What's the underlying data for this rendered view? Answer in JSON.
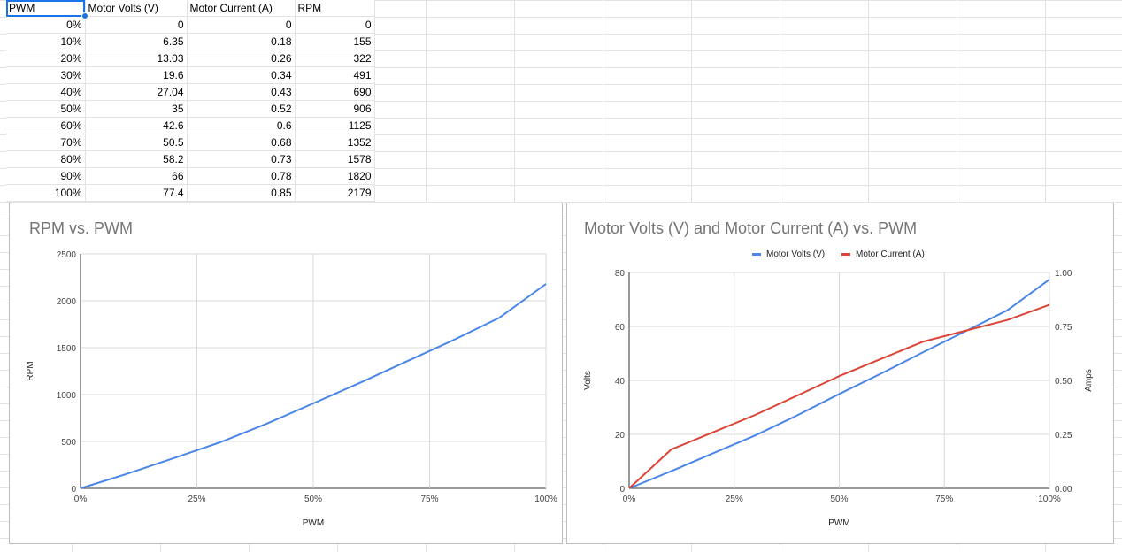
{
  "sheet": {
    "headers": [
      "PWM",
      "Motor Volts (V)",
      "Motor Current (A)",
      "RPM"
    ],
    "rows": [
      [
        "0%",
        "0",
        "0",
        "0"
      ],
      [
        "10%",
        "6.35",
        "0.18",
        "155"
      ],
      [
        "20%",
        "13.03",
        "0.26",
        "322"
      ],
      [
        "30%",
        "19.6",
        "0.34",
        "491"
      ],
      [
        "40%",
        "27.04",
        "0.43",
        "690"
      ],
      [
        "50%",
        "35",
        "0.52",
        "906"
      ],
      [
        "60%",
        "42.6",
        "0.6",
        "1125"
      ],
      [
        "70%",
        "50.5",
        "0.68",
        "1352"
      ],
      [
        "80%",
        "58.2",
        "0.73",
        "1578"
      ],
      [
        "90%",
        "66",
        "0.78",
        "1820"
      ],
      [
        "100%",
        "77.4",
        "0.85",
        "2179"
      ]
    ]
  },
  "chart_data": [
    {
      "type": "line",
      "title": "RPM vs. PWM",
      "xlabel": "PWM",
      "ylabel": "RPM",
      "x": [
        0,
        10,
        20,
        30,
        40,
        50,
        60,
        70,
        80,
        90,
        100
      ],
      "xlim": [
        0,
        100
      ],
      "xticks": [
        "0%",
        "25%",
        "50%",
        "75%",
        "100%"
      ],
      "ylim": [
        0,
        2500
      ],
      "yticks": [
        "0",
        "500",
        "1000",
        "1500",
        "2000",
        "2500"
      ],
      "grid": true,
      "series": [
        {
          "values": [
            0,
            155,
            322,
            491,
            690,
            906,
            1125,
            1352,
            1578,
            1820,
            2179
          ],
          "color": "#4a86e8"
        }
      ]
    },
    {
      "type": "line",
      "title": "Motor Volts (V) and Motor Current (A) vs. PWM",
      "xlabel": "PWM",
      "ylabel": "Volts",
      "y2label": "Amps",
      "x": [
        0,
        10,
        20,
        30,
        40,
        50,
        60,
        70,
        80,
        90,
        100
      ],
      "xlim": [
        0,
        100
      ],
      "xticks": [
        "0%",
        "25%",
        "50%",
        "75%",
        "100%"
      ],
      "ylim": [
        0,
        80
      ],
      "yticks": [
        "0",
        "20",
        "40",
        "60",
        "80"
      ],
      "y2lim": [
        0,
        1.0
      ],
      "y2ticks": [
        "0.00",
        "0.25",
        "0.50",
        "0.75",
        "1.00"
      ],
      "legend": "top",
      "grid": true,
      "series": [
        {
          "name": "Motor Volts (V)",
          "axis": "left",
          "values": [
            0,
            6.35,
            13.03,
            19.6,
            27.04,
            35,
            42.6,
            50.5,
            58.2,
            66,
            77.4
          ],
          "color": "#4a86e8"
        },
        {
          "name": "Motor Current (A)",
          "axis": "right",
          "values": [
            0,
            0.18,
            0.26,
            0.34,
            0.43,
            0.52,
            0.6,
            0.68,
            0.73,
            0.78,
            0.85
          ],
          "color": "#db4437"
        }
      ]
    }
  ]
}
